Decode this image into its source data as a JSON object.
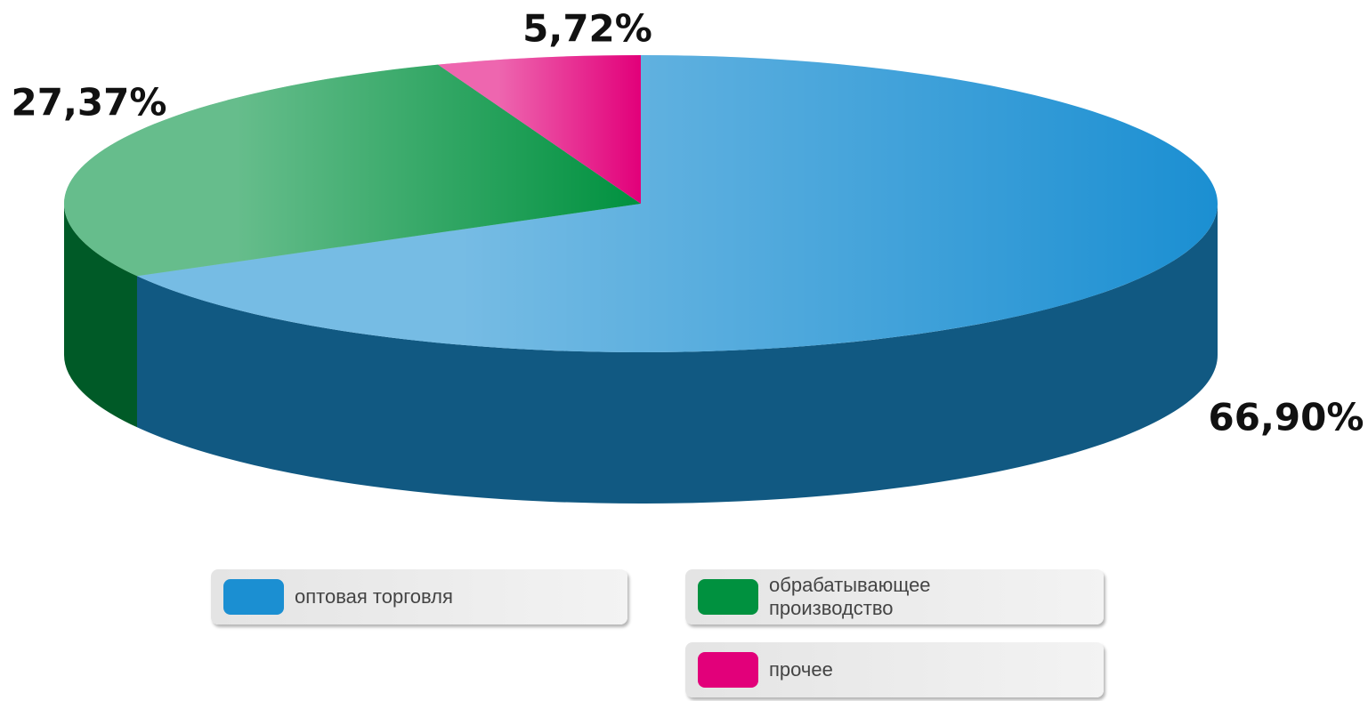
{
  "chart_data": {
    "type": "pie",
    "categories": [
      "оптовая торговля",
      "обрабатывающее производство",
      "прочее"
    ],
    "values": [
      66.9,
      27.37,
      5.72
    ],
    "value_labels": [
      "66,90%",
      "27,37%",
      "5,72%"
    ],
    "colors": [
      "#1b8fd2",
      "#00913f",
      "#e2007a"
    ],
    "legend": "bottom"
  }
}
